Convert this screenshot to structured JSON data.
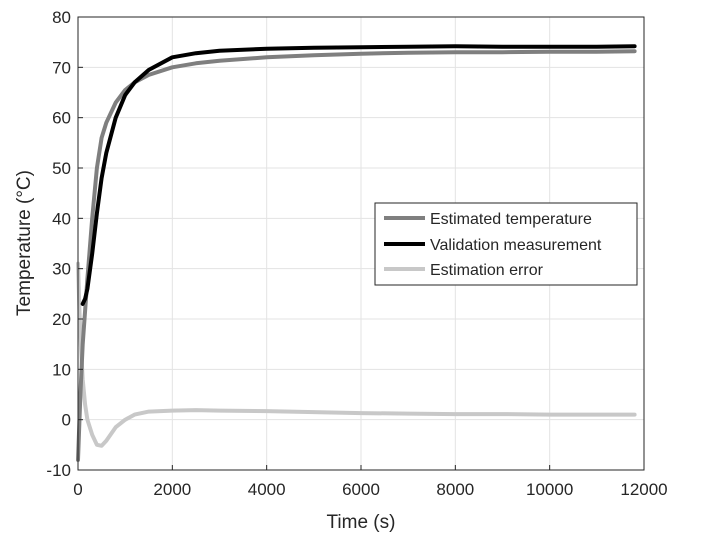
{
  "chart_data": {
    "type": "line",
    "xlabel": "Time (s)",
    "ylabel": "Temperature (°C)",
    "xlim": [
      0,
      12000
    ],
    "ylim": [
      -10,
      80
    ],
    "xticks": [
      0,
      2000,
      4000,
      6000,
      8000,
      10000,
      12000
    ],
    "yticks": [
      -10,
      0,
      10,
      20,
      30,
      40,
      50,
      60,
      70,
      80
    ],
    "xtick_labels": [
      "0",
      "2000",
      "4000",
      "6000",
      "8000",
      "10000",
      "12000"
    ],
    "ytick_labels": [
      "-10",
      "0",
      "10",
      "20",
      "30",
      "40",
      "50",
      "60",
      "70",
      "80"
    ],
    "grid": true,
    "legend_position": "center-right",
    "series": [
      {
        "name": "Estimated temperature",
        "color": "#7f7f7f",
        "x": [
          0,
          50,
          100,
          200,
          300,
          400,
          500,
          600,
          800,
          1000,
          1200,
          1500,
          2000,
          2500,
          3000,
          4000,
          5000,
          6000,
          7000,
          8000,
          9000,
          10000,
          11000,
          11800
        ],
        "y": [
          -8,
          5,
          15,
          28,
          40,
          50,
          56,
          59,
          63,
          65.5,
          67,
          68.5,
          70,
          70.8,
          71.3,
          72,
          72.4,
          72.7,
          72.9,
          73,
          73,
          73.1,
          73.1,
          73.2
        ]
      },
      {
        "name": "Validation measurement",
        "color": "#000000",
        "x": [
          100,
          150,
          200,
          300,
          400,
          500,
          600,
          800,
          1000,
          1200,
          1500,
          2000,
          2500,
          3000,
          4000,
          5000,
          6000,
          7000,
          8000,
          9000,
          10000,
          11000,
          11800
        ],
        "y": [
          23,
          24,
          26,
          33,
          41,
          48,
          53,
          60,
          64.5,
          67,
          69.5,
          72,
          72.8,
          73.3,
          73.7,
          73.9,
          74,
          74.1,
          74.2,
          74.1,
          74.1,
          74.1,
          74.2
        ]
      },
      {
        "name": "Estimation error",
        "color": "#c8c8c8",
        "x": [
          0,
          30,
          60,
          100,
          150,
          200,
          300,
          400,
          500,
          600,
          800,
          1000,
          1200,
          1500,
          2000,
          2500,
          3000,
          4000,
          5000,
          6000,
          7000,
          8000,
          9000,
          10000,
          11000,
          11800
        ],
        "y": [
          31,
          22,
          15,
          8,
          3,
          0,
          -3,
          -5,
          -5.2,
          -4.2,
          -1.5,
          0,
          1,
          1.6,
          1.8,
          1.9,
          1.8,
          1.7,
          1.5,
          1.3,
          1.2,
          1.1,
          1.1,
          1.0,
          1.0,
          1.0
        ]
      }
    ]
  }
}
